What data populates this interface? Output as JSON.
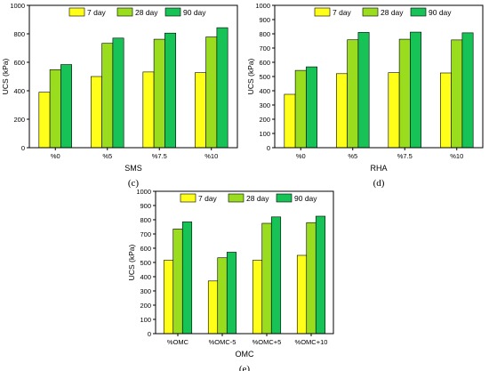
{
  "colors": {
    "day7": "#ffff1a",
    "day28": "#99dd1e",
    "day90": "#17c256",
    "stroke": "#000000"
  },
  "chart_data": [
    {
      "type": "bar",
      "caption": "(c)",
      "xlabel": "SMS",
      "ylabel": "UCS (kPa)",
      "ylim": [
        0,
        1000
      ],
      "yticks": [
        0,
        200,
        400,
        600,
        800,
        1000
      ],
      "legend_position": "top",
      "categories": [
        "%0",
        "%5",
        "%7.5",
        "%10"
      ],
      "series": [
        {
          "name": "7 day",
          "values": [
            390,
            500,
            532,
            527
          ]
        },
        {
          "name": "28 day",
          "values": [
            548,
            733,
            762,
            778
          ]
        },
        {
          "name": "90 day",
          "values": [
            584,
            770,
            805,
            843
          ]
        }
      ]
    },
    {
      "type": "bar",
      "caption": "(d)",
      "xlabel": "RHA",
      "ylabel": "UCS (kPa)",
      "ylim": [
        0,
        1000
      ],
      "yticks": [
        0,
        100,
        200,
        300,
        400,
        500,
        600,
        700,
        800,
        900,
        1000
      ],
      "legend_position": "top",
      "categories": [
        "%0",
        "%5",
        "%7.5",
        "%10"
      ],
      "series": [
        {
          "name": "7 day",
          "values": [
            375,
            520,
            527,
            525
          ]
        },
        {
          "name": "28 day",
          "values": [
            543,
            758,
            762,
            757
          ]
        },
        {
          "name": "90 day",
          "values": [
            568,
            810,
            812,
            807
          ]
        }
      ]
    },
    {
      "type": "bar",
      "caption": "(e)",
      "xlabel": "OMC",
      "ylabel": "UCS (kPa)",
      "ylim": [
        0,
        1000
      ],
      "yticks": [
        0,
        100,
        200,
        300,
        400,
        500,
        600,
        700,
        800,
        900,
        1000
      ],
      "legend_position": "top",
      "categories": [
        "%OMC",
        "%OMC-5",
        "%OMC+5",
        "%OMC+10"
      ],
      "series": [
        {
          "name": "7 day",
          "values": [
            515,
            370,
            515,
            550
          ]
        },
        {
          "name": "28 day",
          "values": [
            735,
            533,
            775,
            780
          ]
        },
        {
          "name": "90 day",
          "values": [
            785,
            572,
            820,
            825
          ]
        }
      ]
    }
  ]
}
